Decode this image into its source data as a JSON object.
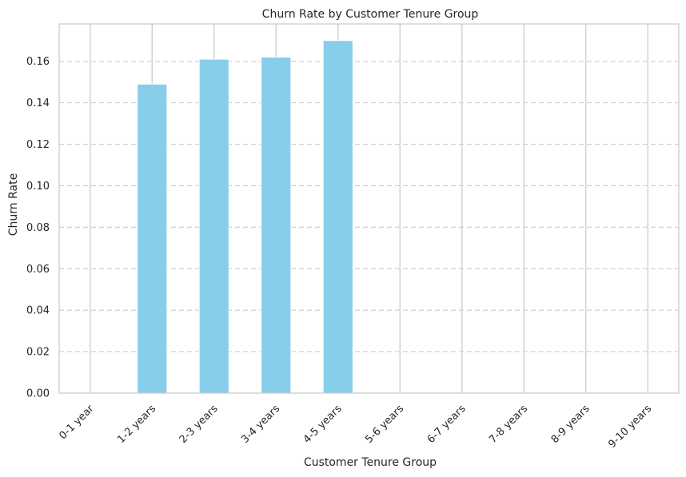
{
  "chart_data": {
    "type": "bar",
    "title": "Churn Rate by Customer Tenure Group",
    "xlabel": "Customer Tenure Group",
    "ylabel": "Churn Rate",
    "categories": [
      "0-1 year",
      "1-2 years",
      "2-3 years",
      "3-4 years",
      "4-5 years",
      "5-6 years",
      "6-7 years",
      "7-8 years",
      "8-9 years",
      "9-10 years"
    ],
    "values": [
      0,
      0.149,
      0.161,
      0.162,
      0.17,
      0,
      0,
      0,
      0,
      0
    ],
    "ylim": [
      0,
      0.178
    ],
    "yticks": [
      "0.00",
      "0.02",
      "0.04",
      "0.06",
      "0.08",
      "0.10",
      "0.12",
      "0.14",
      "0.16"
    ],
    "grid": "on",
    "bar_color": "#87CEEB",
    "grid_color": "#cccccc",
    "axes_edge_color": "#cccccc"
  }
}
